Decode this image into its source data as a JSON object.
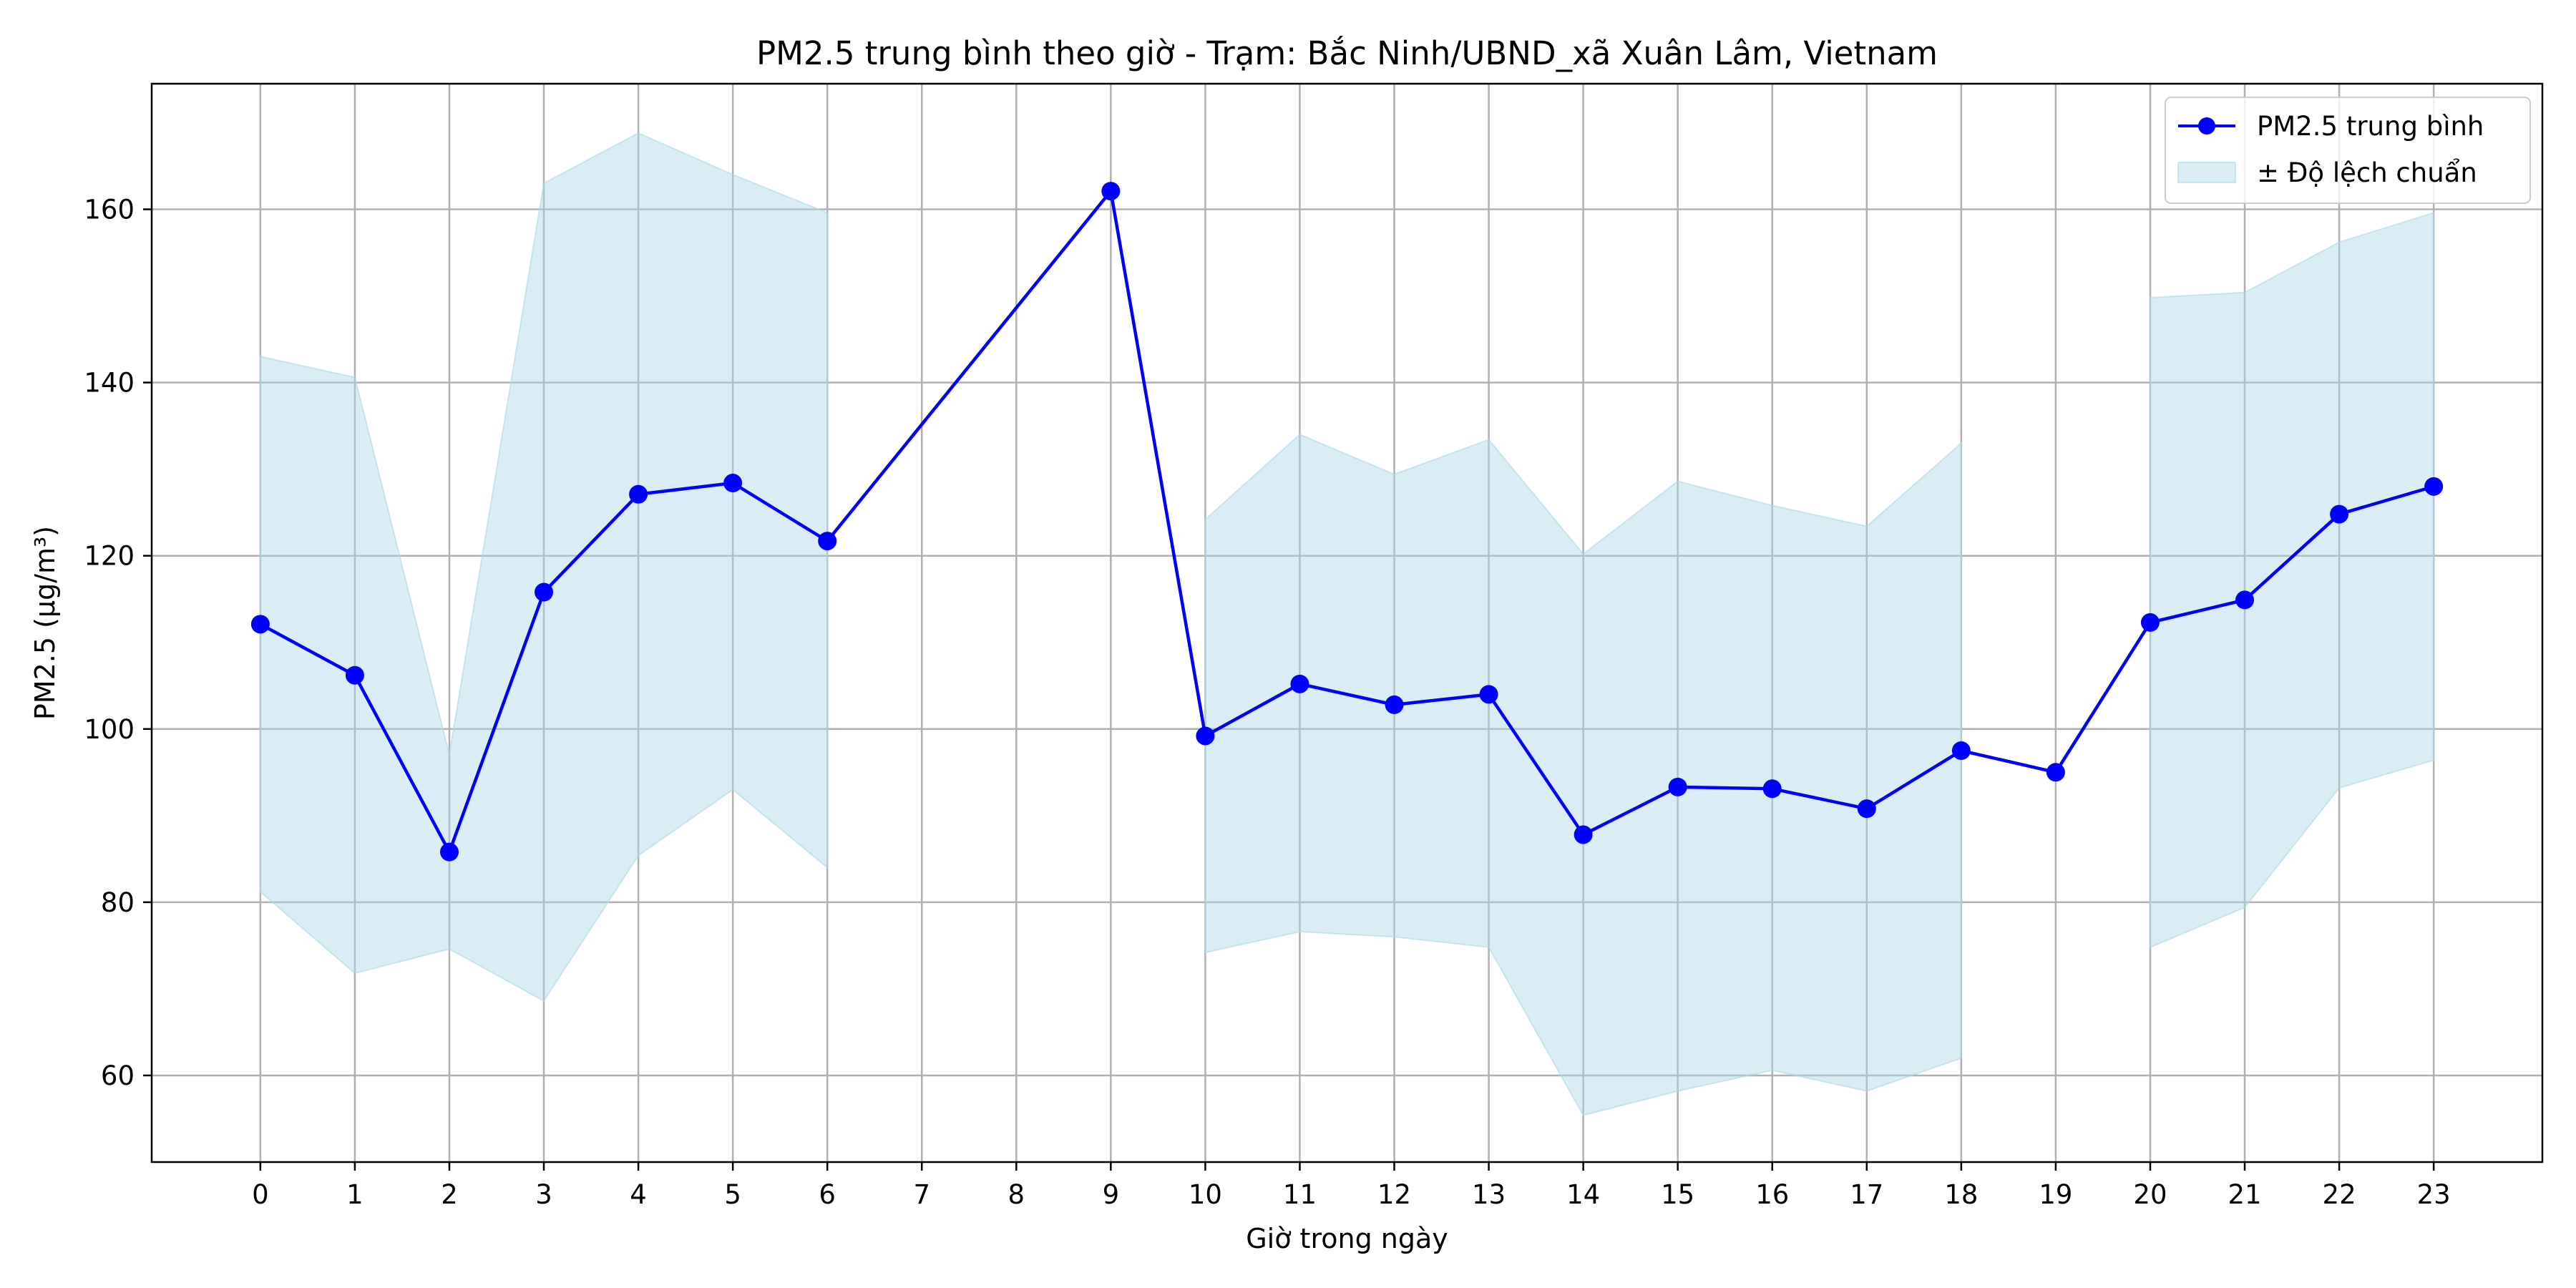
{
  "chart_data": {
    "type": "line",
    "title": "PM2.5 trung bình theo giờ - Trạm: Bắc Ninh/UBND_xã Xuân Lâm, Vietnam",
    "xlabel": "Giờ trong ngày",
    "ylabel": "PM2.5 (µg/m³)",
    "x_ticks": [
      "0",
      "1",
      "2",
      "3",
      "4",
      "5",
      "6",
      "7",
      "8",
      "9",
      "10",
      "11",
      "12",
      "13",
      "14",
      "15",
      "16",
      "17",
      "18",
      "19",
      "20",
      "21",
      "22",
      "23"
    ],
    "y_ticks": [
      "60",
      "80",
      "100",
      "120",
      "140",
      "160"
    ],
    "xlim": [
      -1.15,
      24.15
    ],
    "ylim": [
      50,
      174.5
    ],
    "grid": true,
    "legend_position": "top-right",
    "series": [
      {
        "name": "PM2.5 trung bình",
        "color": "#0000ff",
        "marker": "circle",
        "x": [
          0,
          1,
          2,
          3,
          4,
          5,
          6,
          9,
          10,
          11,
          12,
          13,
          14,
          15,
          16,
          17,
          18,
          19,
          20,
          21,
          22,
          23
        ],
        "y": [
          112.1,
          106.2,
          85.8,
          115.8,
          127.1,
          128.4,
          121.7,
          162.1,
          99.2,
          105.2,
          102.8,
          104.0,
          87.8,
          93.3,
          93.1,
          90.8,
          97.5,
          95.0,
          112.3,
          114.9,
          124.8,
          128.0
        ]
      }
    ],
    "band": {
      "name": "± Độ lệch chuẩn",
      "color": "#add8e6",
      "segments": [
        {
          "x": [
            0,
            1,
            2,
            3,
            4,
            5,
            6
          ],
          "upper": [
            143.0,
            140.6,
            97.0,
            163.0,
            168.8,
            164.0,
            159.6
          ],
          "lower": [
            81.2,
            71.8,
            74.6,
            68.6,
            85.4,
            93.0,
            84.0
          ]
        },
        {
          "x": [
            10,
            11,
            12,
            13,
            14,
            15,
            16,
            17,
            18
          ],
          "upper": [
            124.2,
            134.0,
            129.4,
            133.4,
            120.2,
            128.6,
            125.8,
            123.4,
            133.0
          ],
          "lower": [
            74.2,
            76.6,
            76.0,
            74.8,
            55.4,
            58.2,
            60.6,
            58.2,
            62.0
          ]
        },
        {
          "x": [
            20,
            21,
            22,
            23
          ],
          "upper": [
            149.8,
            150.4,
            156.2,
            159.6
          ],
          "lower": [
            74.8,
            79.4,
            93.2,
            96.4
          ]
        }
      ]
    }
  }
}
